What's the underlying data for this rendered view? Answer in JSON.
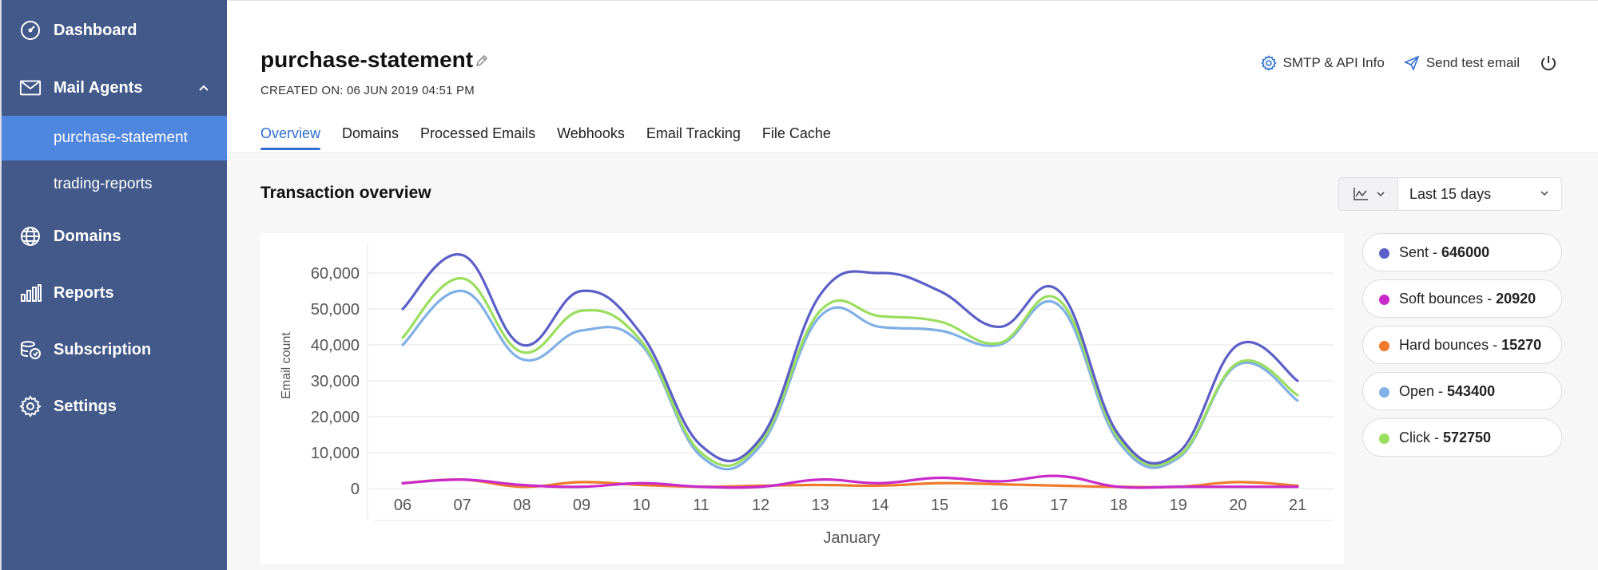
{
  "sidebar": {
    "items": [
      {
        "label": "Dashboard",
        "icon": "dashboard-icon"
      },
      {
        "label": "Mail Agents",
        "icon": "mail-icon"
      },
      {
        "label": "Domains",
        "icon": "globe-icon"
      },
      {
        "label": "Reports",
        "icon": "bar-chart-icon"
      },
      {
        "label": "Subscription",
        "icon": "subscription-icon"
      },
      {
        "label": "Settings",
        "icon": "gear-icon"
      }
    ],
    "sub_items": [
      {
        "label": "purchase-statement",
        "active": true
      },
      {
        "label": "trading-reports",
        "active": false
      }
    ],
    "bg_color": "#42598a",
    "active_color": "#4f87e0"
  },
  "header": {
    "title": "purchase-statement",
    "created": "CREATED ON: 06 JUN 2019 04:51 PM",
    "actions": {
      "smtp": "SMTP & API Info",
      "send_test": "Send test email"
    },
    "tabs": [
      "Overview",
      "Domains",
      "Processed Emails",
      "Webhooks",
      "Email Tracking",
      "File Cache"
    ],
    "active_tab": "Overview",
    "accent_color": "#2f6fd1"
  },
  "overview": {
    "title": "Transaction overview",
    "range": "Last 15 days"
  },
  "legend": [
    {
      "label": "Sent - ",
      "value": "646000",
      "color": "#5b5fc7"
    },
    {
      "label": "Soft bounces - ",
      "value": "20920",
      "color": "#c92ac9"
    },
    {
      "label": "Hard bounces - ",
      "value": "15270",
      "color": "#f07a2c"
    },
    {
      "label": "Open - ",
      "value": "543400",
      "color": "#7fb0e6"
    },
    {
      "label": "Click - ",
      "value": "572750",
      "color": "#9ade5e"
    }
  ],
  "chart_data": {
    "type": "line",
    "x": [
      "06",
      "07",
      "08",
      "09",
      "10",
      "11",
      "12",
      "13",
      "14",
      "15",
      "16",
      "17",
      "18",
      "19",
      "20",
      "21"
    ],
    "xlabel": "January",
    "ylabel": "Email count",
    "ylim": [
      0,
      60000
    ],
    "yticks": [
      "0",
      "10,000",
      "20,000",
      "30,000",
      "40,000",
      "50,000",
      "60,000"
    ],
    "grid": true,
    "legend_position": "right",
    "series": [
      {
        "name": "Sent",
        "color": "#5b5fc7",
        "values": [
          50000,
          65000,
          40000,
          55000,
          43000,
          12000,
          14000,
          54000,
          60000,
          55000,
          45000,
          55000,
          15000,
          10000,
          40000,
          30000
        ]
      },
      {
        "name": "Click",
        "color": "#9ade5e",
        "values": [
          42000,
          58500,
          38000,
          49500,
          41000,
          10000,
          13000,
          49500,
          48000,
          46500,
          40500,
          52500,
          14000,
          9000,
          35000,
          26000
        ]
      },
      {
        "name": "Open",
        "color": "#7fb0e6",
        "values": [
          40000,
          55000,
          36000,
          44000,
          40000,
          9000,
          12000,
          48000,
          45000,
          44000,
          40000,
          51000,
          13000,
          8500,
          34500,
          24500
        ]
      },
      {
        "name": "Soft bounces",
        "color": "#c92ac9",
        "values": [
          1500,
          2500,
          1000,
          500,
          1500,
          500,
          500,
          2500,
          1500,
          3000,
          2000,
          3500,
          500,
          500,
          500,
          500
        ]
      },
      {
        "name": "Hard bounces",
        "color": "#f07a2c",
        "values": [
          1500,
          2500,
          500,
          1800,
          1000,
          500,
          800,
          1000,
          800,
          1500,
          1200,
          800,
          500,
          500,
          1800,
          800
        ]
      }
    ]
  }
}
